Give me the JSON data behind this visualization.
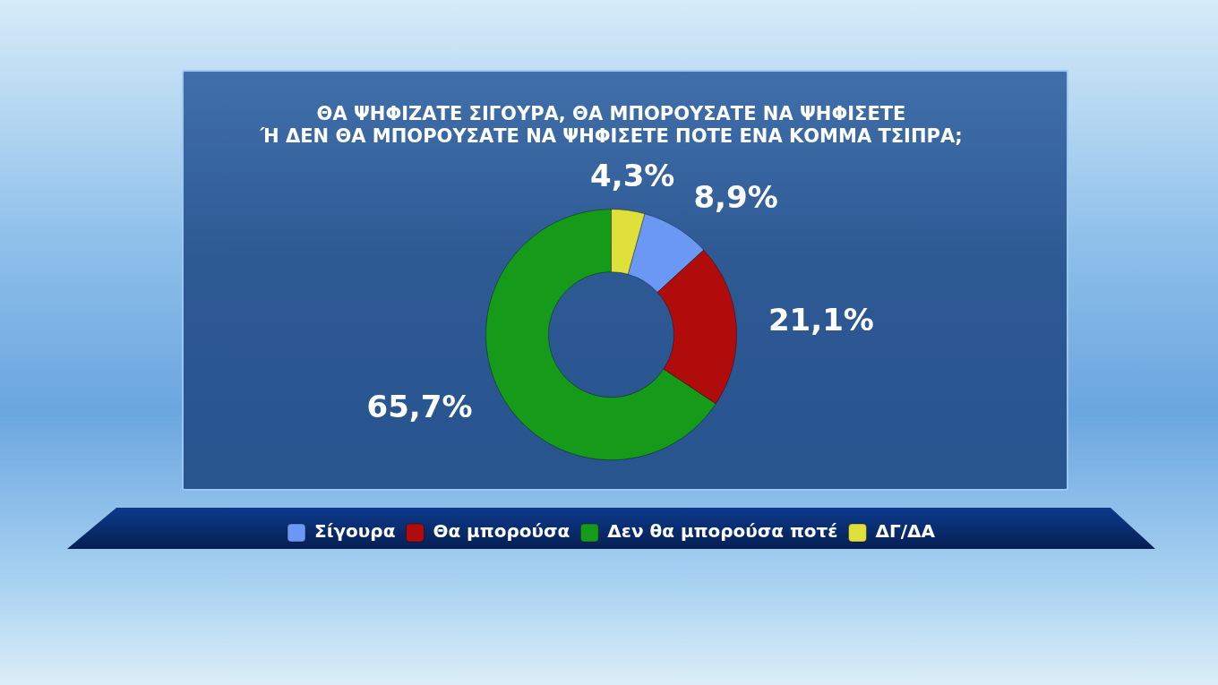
{
  "chart_data": {
    "type": "donut",
    "title": "ΘΑ ΨΗΦΙΖΑΤΕ ΣΙΓΟΥΡΑ, ΘΑ ΜΠΟΡΟΥΣΑΤΕ ΝΑ ΨΗΦΙΣΕΤΕ\nΉ ΔΕΝ ΘΑ ΜΠΟΡΟΥΣΑΤΕ ΝΑ ΨΗΦΙΣΕΤΕ ΠΟΤΕ ΕΝΑ ΚΟΜΜΑ ΤΣΙΠΡΑ;",
    "categories": [
      "Σίγουρα",
      "Θα μπορούσα",
      "Δεν θα μπορούσα ποτέ",
      "ΔΓ/ΔΑ"
    ],
    "values": [
      8.9,
      21.1,
      65.7,
      4.3
    ],
    "colors": [
      "#6b98f5",
      "#b00c0c",
      "#159a1a",
      "#e0e03a"
    ],
    "value_labels": [
      "8,9%",
      "21,1%",
      "65,7%",
      "4,3%"
    ],
    "legend": "bottom"
  }
}
